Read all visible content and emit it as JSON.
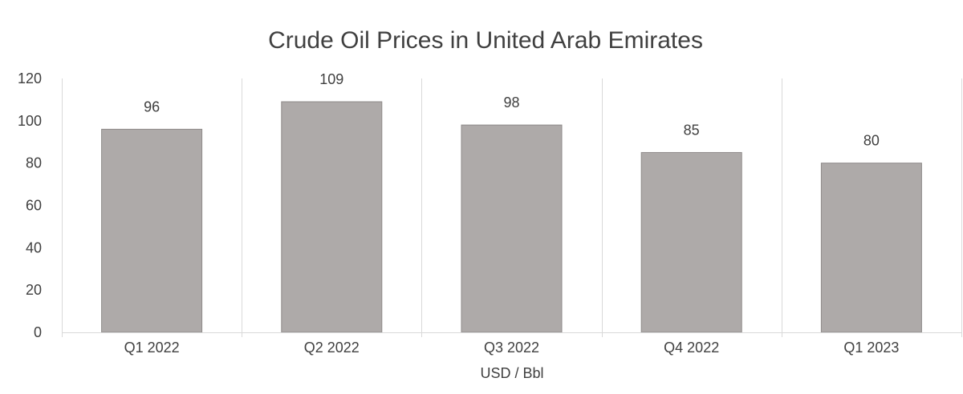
{
  "chart_data": {
    "type": "bar",
    "title": "Crude Oil Prices in United Arab Emirates",
    "xlabel": "USD / Bbl",
    "ylabel": "",
    "categories": [
      "Q1 2022",
      "Q2 2022",
      "Q3 2022",
      "Q4 2022",
      "Q1 2023"
    ],
    "values": [
      96,
      109,
      98,
      85,
      80
    ],
    "data_labels": [
      "96",
      "109",
      "98",
      "85",
      "80"
    ],
    "ylim": [
      0,
      120
    ],
    "yticks": [
      "0",
      "20",
      "40",
      "60",
      "80",
      "100",
      "120"
    ],
    "grid": "vertical category separators",
    "legend": "none",
    "bar_color": "#aeaaa9",
    "bar_edge_color": "#8e8a89"
  }
}
